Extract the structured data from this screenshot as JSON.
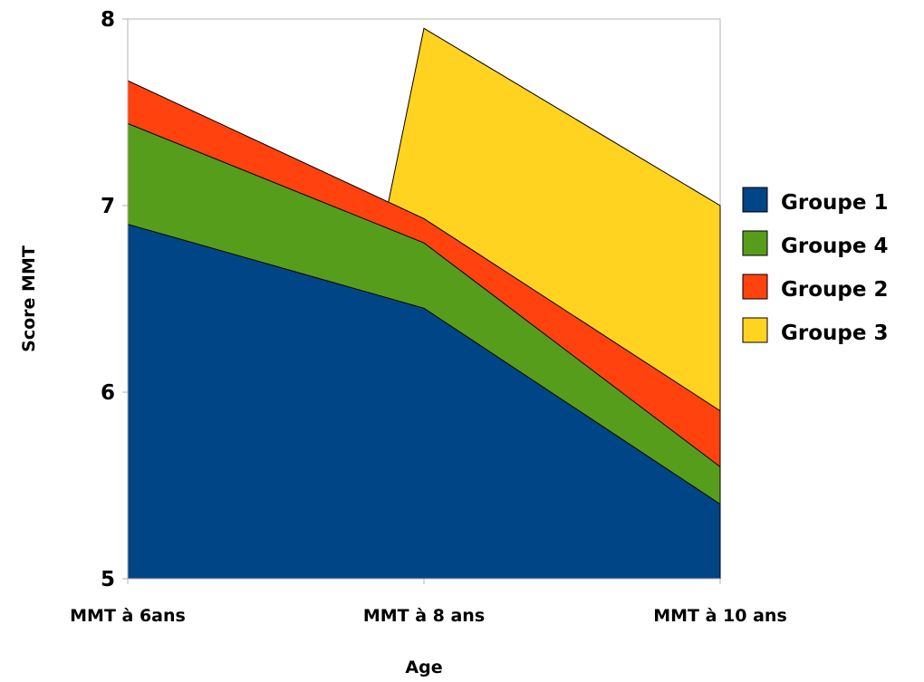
{
  "chart_data": {
    "type": "area",
    "title": "",
    "xlabel": "Age",
    "ylabel": "Score MMT",
    "ylim": [
      5,
      8
    ],
    "y_ticks": [
      5,
      6,
      7,
      8
    ],
    "categories": [
      "MMT à 6ans",
      "MMT à 8 ans",
      "MMT à 10 ans"
    ],
    "grid": false,
    "legend_position": "right",
    "series": [
      {
        "name": "Groupe 1",
        "values": [
          6.9,
          6.45,
          5.4
        ],
        "color": "#004586"
      },
      {
        "name": "Groupe 4",
        "values": [
          7.44,
          6.8,
          5.6
        ],
        "color": "#579d1c"
      },
      {
        "name": "Groupe 2",
        "values": [
          7.67,
          6.93,
          5.9
        ],
        "color": "#ff420e"
      },
      {
        "name": "Groupe 3",
        "values": [
          null,
          7.95,
          7.0
        ],
        "color": "#ffd320"
      }
    ],
    "legend_order": [
      "Groupe 1",
      "Groupe 4",
      "Groupe 2",
      "Groupe 3"
    ]
  }
}
